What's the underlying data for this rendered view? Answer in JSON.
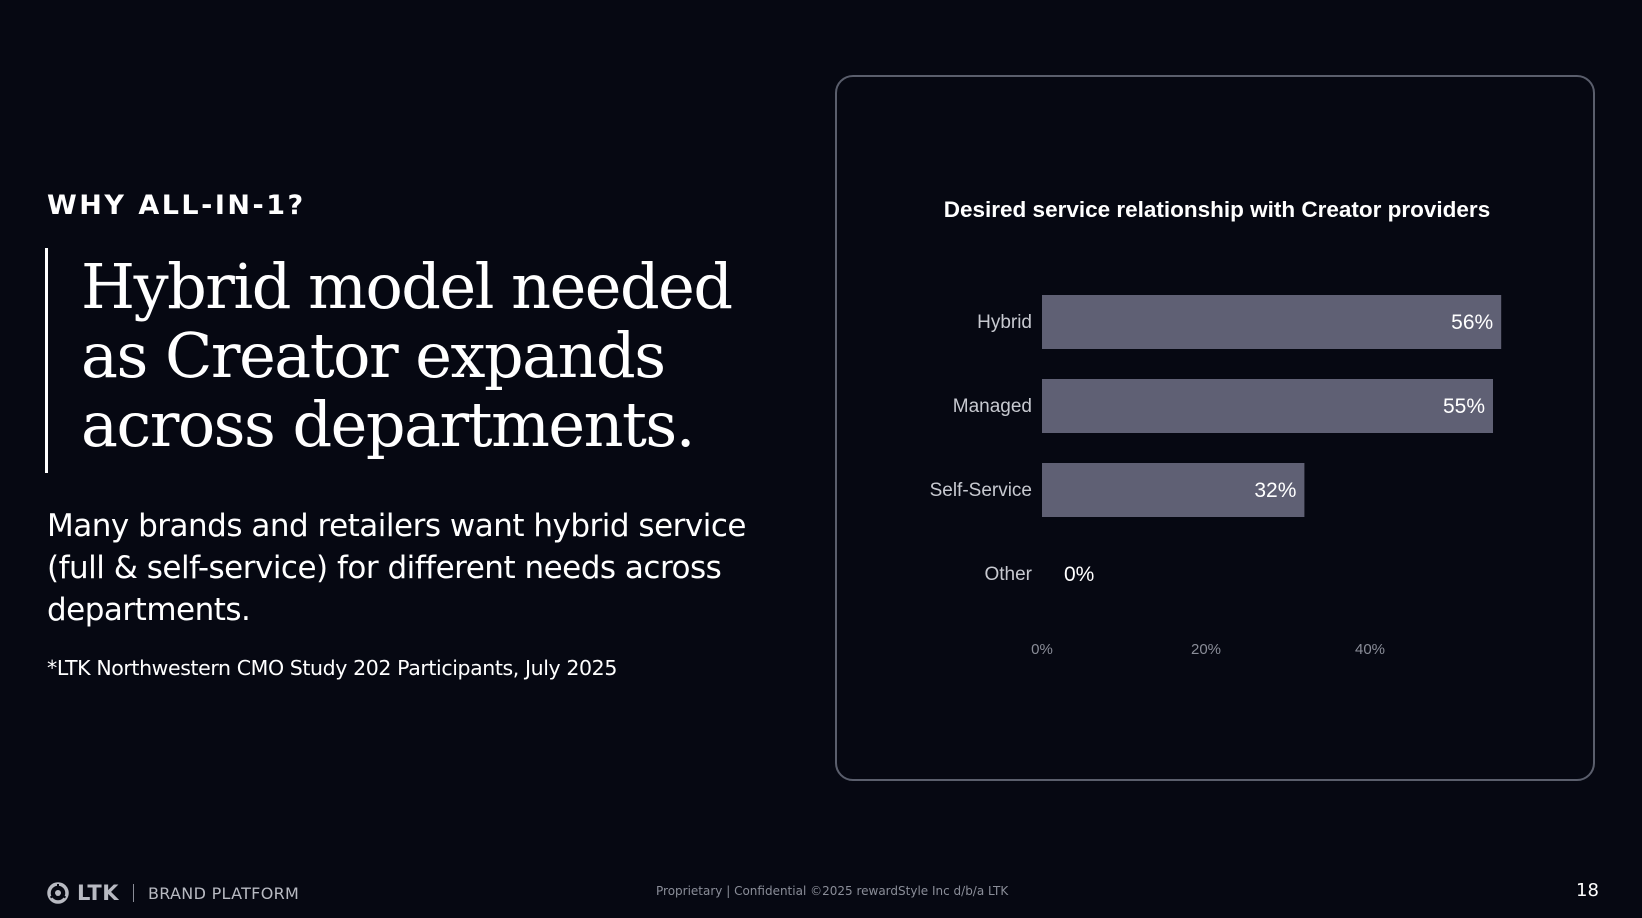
{
  "slide": {
    "eyebrow": "WHY ALL-IN-1?",
    "headline": "Hybrid model needed as Creator expands across departments.",
    "body": "Many brands and retailers want hybrid service (full & self-service) for different needs across departments.",
    "footnote": "*LTK Northwestern CMO Study 202 Participants, July 2025"
  },
  "footer": {
    "logo_text": "LTK",
    "logo_sub": "BRAND PLATFORM",
    "legal": "Proprietary | Confidential ©2025 rewardStyle Inc d/b/a LTK",
    "page_number": "18"
  },
  "colors": {
    "background": "#060812",
    "bar": "#5f6074",
    "card_border": "#5a5e6c",
    "label": "#c7c9d0",
    "tick": "#8a8d98"
  },
  "chart_data": {
    "type": "bar",
    "orientation": "horizontal",
    "title": "Desired service relationship with Creator providers",
    "categories": [
      "Hybrid",
      "Managed",
      "Self-Service",
      "Other"
    ],
    "values": [
      56,
      55,
      32,
      0
    ],
    "data_labels": [
      "56%",
      "55%",
      "32%",
      "0%"
    ],
    "x_ticks": [
      0,
      20,
      40
    ],
    "x_tick_labels": [
      "0%",
      "20%",
      "40%"
    ],
    "xlim": [
      0,
      60
    ],
    "xlabel": "",
    "ylabel": "",
    "grid": false,
    "legend": "none"
  }
}
